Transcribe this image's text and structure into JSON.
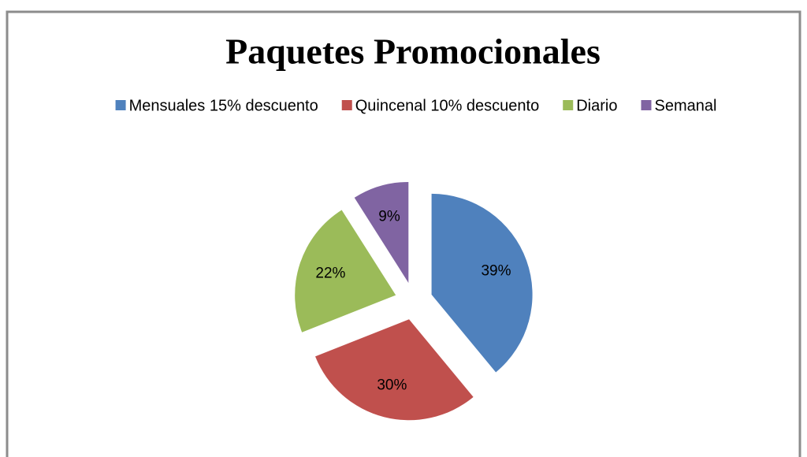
{
  "chart_data": {
    "type": "pie",
    "title": "Paquetes Promocionales",
    "categories": [
      "Mensuales 15% descuento",
      "Quincenal 10% descuento",
      "Diario",
      "Semanal"
    ],
    "values": [
      39,
      30,
      22,
      9
    ],
    "value_labels": [
      "39%",
      "30%",
      "22%",
      "9%"
    ],
    "colors": [
      "#4f81bd",
      "#c0504d",
      "#9bbb59",
      "#8064a2"
    ],
    "legend": "top"
  }
}
